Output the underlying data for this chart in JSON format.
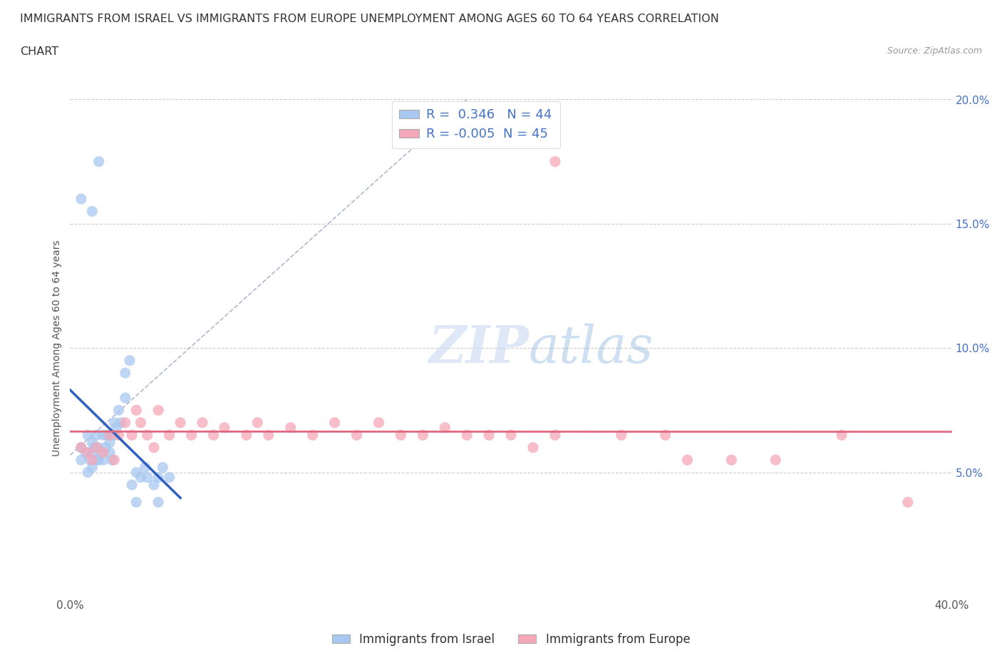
{
  "title_line1": "IMMIGRANTS FROM ISRAEL VS IMMIGRANTS FROM EUROPE UNEMPLOYMENT AMONG AGES 60 TO 64 YEARS CORRELATION",
  "title_line2": "CHART",
  "source": "Source: ZipAtlas.com",
  "ylabel": "Unemployment Among Ages 60 to 64 years",
  "xlim": [
    0.0,
    0.4
  ],
  "ylim": [
    0.0,
    0.2
  ],
  "xtick_vals": [
    0.0,
    0.05,
    0.1,
    0.15,
    0.2,
    0.25,
    0.3,
    0.35,
    0.4
  ],
  "xticklabels": [
    "0.0%",
    "",
    "",
    "",
    "",
    "",
    "",
    "",
    "40.0%"
  ],
  "ytick_vals": [
    0.0,
    0.05,
    0.1,
    0.15,
    0.2
  ],
  "yticklabels": [
    "",
    "5.0%",
    "10.0%",
    "15.0%",
    "20.0%"
  ],
  "grid_color": "#cccccc",
  "watermark_zip": "ZIP",
  "watermark_atlas": "atlas",
  "legend_israel": "Immigrants from Israel",
  "legend_europe": "Immigrants from Europe",
  "R_israel": 0.346,
  "N_israel": 44,
  "R_europe": -0.005,
  "N_europe": 45,
  "israel_color": "#a8c8f0",
  "europe_color": "#f5a8b8",
  "israel_line_color": "#3060c0",
  "europe_line_color": "#e06880",
  "diag_color": "#b0b8d0",
  "israel_scatter": [
    [
      0.005,
      0.055
    ],
    [
      0.005,
      0.06
    ],
    [
      0.007,
      0.058
    ],
    [
      0.008,
      0.065
    ],
    [
      0.008,
      0.05
    ],
    [
      0.009,
      0.055
    ],
    [
      0.01,
      0.062
    ],
    [
      0.01,
      0.058
    ],
    [
      0.01,
      0.052
    ],
    [
      0.011,
      0.06
    ],
    [
      0.012,
      0.055
    ],
    [
      0.012,
      0.065
    ],
    [
      0.013,
      0.06
    ],
    [
      0.013,
      0.055
    ],
    [
      0.014,
      0.058
    ],
    [
      0.015,
      0.065
    ],
    [
      0.015,
      0.055
    ],
    [
      0.016,
      0.06
    ],
    [
      0.017,
      0.065
    ],
    [
      0.018,
      0.062
    ],
    [
      0.018,
      0.058
    ],
    [
      0.019,
      0.055
    ],
    [
      0.02,
      0.07
    ],
    [
      0.02,
      0.065
    ],
    [
      0.021,
      0.068
    ],
    [
      0.022,
      0.075
    ],
    [
      0.023,
      0.07
    ],
    [
      0.025,
      0.08
    ],
    [
      0.025,
      0.09
    ],
    [
      0.027,
      0.095
    ],
    [
      0.028,
      0.045
    ],
    [
      0.03,
      0.05
    ],
    [
      0.032,
      0.048
    ],
    [
      0.034,
      0.052
    ],
    [
      0.035,
      0.048
    ],
    [
      0.038,
      0.045
    ],
    [
      0.04,
      0.048
    ],
    [
      0.042,
      0.052
    ],
    [
      0.045,
      0.048
    ],
    [
      0.005,
      0.16
    ],
    [
      0.01,
      0.155
    ],
    [
      0.013,
      0.175
    ],
    [
      0.03,
      0.038
    ],
    [
      0.04,
      0.038
    ]
  ],
  "europe_scatter": [
    [
      0.005,
      0.06
    ],
    [
      0.008,
      0.058
    ],
    [
      0.01,
      0.055
    ],
    [
      0.012,
      0.06
    ],
    [
      0.015,
      0.058
    ],
    [
      0.018,
      0.065
    ],
    [
      0.02,
      0.055
    ],
    [
      0.022,
      0.065
    ],
    [
      0.025,
      0.07
    ],
    [
      0.028,
      0.065
    ],
    [
      0.03,
      0.075
    ],
    [
      0.032,
      0.07
    ],
    [
      0.035,
      0.065
    ],
    [
      0.038,
      0.06
    ],
    [
      0.04,
      0.075
    ],
    [
      0.045,
      0.065
    ],
    [
      0.05,
      0.07
    ],
    [
      0.055,
      0.065
    ],
    [
      0.06,
      0.07
    ],
    [
      0.065,
      0.065
    ],
    [
      0.07,
      0.068
    ],
    [
      0.08,
      0.065
    ],
    [
      0.085,
      0.07
    ],
    [
      0.09,
      0.065
    ],
    [
      0.1,
      0.068
    ],
    [
      0.11,
      0.065
    ],
    [
      0.12,
      0.07
    ],
    [
      0.13,
      0.065
    ],
    [
      0.14,
      0.07
    ],
    [
      0.15,
      0.065
    ],
    [
      0.16,
      0.065
    ],
    [
      0.17,
      0.068
    ],
    [
      0.18,
      0.065
    ],
    [
      0.19,
      0.065
    ],
    [
      0.2,
      0.065
    ],
    [
      0.21,
      0.06
    ],
    [
      0.22,
      0.065
    ],
    [
      0.25,
      0.065
    ],
    [
      0.27,
      0.065
    ],
    [
      0.28,
      0.055
    ],
    [
      0.3,
      0.055
    ],
    [
      0.32,
      0.055
    ],
    [
      0.22,
      0.175
    ],
    [
      0.35,
      0.065
    ],
    [
      0.38,
      0.038
    ]
  ],
  "background_color": "#ffffff"
}
